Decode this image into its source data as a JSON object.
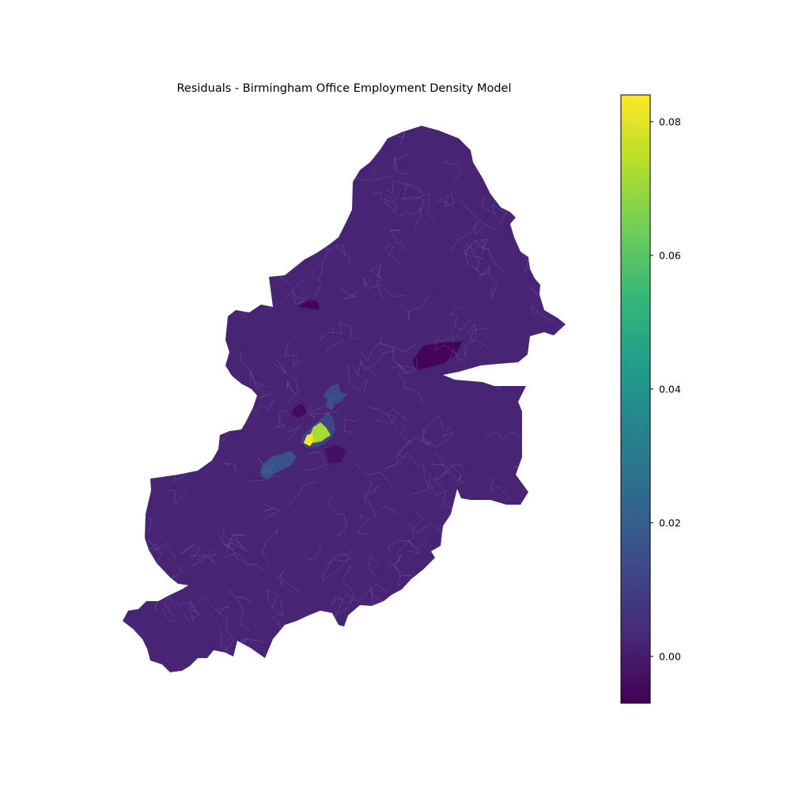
{
  "title": "Residuals - Birmingham Office Employment Density Model",
  "colormap": {
    "name": "viridis",
    "stops": [
      "#440154",
      "#482878",
      "#3e4989",
      "#31688e",
      "#26828e",
      "#1f9e89",
      "#35b779",
      "#6ece58",
      "#b5de2b",
      "#fde725"
    ]
  },
  "colorbar": {
    "min": -0.007,
    "max": 0.084,
    "ticks": [
      {
        "value": 0.0,
        "label": "0.00"
      },
      {
        "value": 0.02,
        "label": "0.02"
      },
      {
        "value": 0.04,
        "label": "0.04"
      },
      {
        "value": 0.06,
        "label": "0.06"
      },
      {
        "value": 0.08,
        "label": "0.08"
      }
    ]
  },
  "map": {
    "base_residual": 0.002,
    "regions": [
      {
        "name": "northeast-low-patch",
        "residual": -0.006
      },
      {
        "name": "north-small-low-patch",
        "residual": -0.006
      },
      {
        "name": "central-low-patch",
        "residual": -0.005
      },
      {
        "name": "city-centre-medium",
        "residual": 0.012
      },
      {
        "name": "northern-medium-arm",
        "residual": 0.014
      },
      {
        "name": "southwest-medium-strip",
        "residual": 0.016
      },
      {
        "name": "southern-slightly-low",
        "residual": -0.003
      },
      {
        "name": "high-residual-green",
        "residual": 0.072
      },
      {
        "name": "high-residual-yellow",
        "residual": 0.084
      }
    ]
  }
}
